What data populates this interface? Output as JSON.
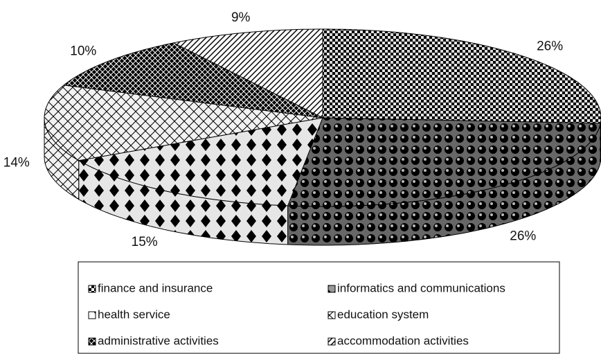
{
  "chart_data": {
    "type": "pie3d",
    "categories": [
      "finance and insurance",
      "informatics and communications",
      "health service",
      "education system",
      "administrative activities",
      "accommodation activities"
    ],
    "values": [
      26,
      26,
      15,
      14,
      10,
      9
    ],
    "value_labels": [
      "26%",
      "26%",
      "15%",
      "14%",
      "10%",
      "9%"
    ],
    "colors": [
      "#d8d8d8",
      "#9a9a9a",
      "#e6e6e6",
      "#f2f2f2",
      "#555555",
      "#ffffff"
    ],
    "legend": "bottom"
  }
}
